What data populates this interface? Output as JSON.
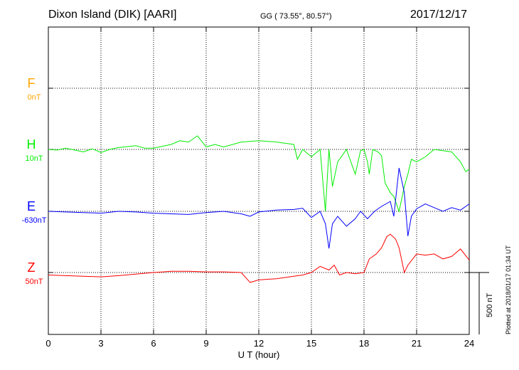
{
  "header": {
    "station": "Dixon Island (DIK)  [AARI]",
    "coords": "GG ( 73.55°,  80.57°)",
    "date": "2017/12/17"
  },
  "plot_stamp": "Plotted at 2018/01/17 01:34 UT",
  "chart_data": {
    "type": "line",
    "xlabel": "U T (hour)",
    "xlim": [
      0,
      24
    ],
    "x_ticks": [
      "0",
      "3",
      "6",
      "9",
      "12",
      "15",
      "18",
      "21",
      "24"
    ],
    "scale_bar": "500 nT",
    "grid": true,
    "series": [
      {
        "name": "F",
        "baseline_label": "0nT",
        "color": "#ffa500",
        "values": []
      },
      {
        "name": "H",
        "baseline_label": "10nT",
        "color": "#00ee00",
        "values": [
          [
            0,
            0
          ],
          [
            0.5,
            -5
          ],
          [
            1,
            10
          ],
          [
            2,
            -20
          ],
          [
            2.5,
            5
          ],
          [
            3,
            -25
          ],
          [
            3.5,
            0
          ],
          [
            4,
            15
          ],
          [
            5,
            30
          ],
          [
            5.5,
            10
          ],
          [
            6,
            10
          ],
          [
            7,
            40
          ],
          [
            7.5,
            70
          ],
          [
            8,
            60
          ],
          [
            8.5,
            110
          ],
          [
            9,
            20
          ],
          [
            9.5,
            40
          ],
          [
            10,
            20
          ],
          [
            11,
            60
          ],
          [
            12,
            70
          ],
          [
            13,
            60
          ],
          [
            14,
            40
          ],
          [
            14.2,
            -80
          ],
          [
            14.5,
            0
          ],
          [
            15,
            -60
          ],
          [
            15.5,
            0
          ],
          [
            15.8,
            -500
          ],
          [
            16,
            0
          ],
          [
            16.2,
            -300
          ],
          [
            16.5,
            -100
          ],
          [
            17,
            0
          ],
          [
            17.5,
            -200
          ],
          [
            17.8,
            -10
          ],
          [
            18,
            0
          ],
          [
            18.2,
            -100
          ],
          [
            18.3,
            -200
          ],
          [
            18.5,
            0
          ],
          [
            18.8,
            -20
          ],
          [
            19,
            -50
          ],
          [
            19.2,
            -270
          ],
          [
            19.5,
            -350
          ],
          [
            19.7,
            -380
          ],
          [
            20,
            -500
          ],
          [
            20.3,
            -300
          ],
          [
            20.5,
            -200
          ],
          [
            20.7,
            -80
          ],
          [
            21,
            -100
          ],
          [
            21.5,
            -60
          ],
          [
            22,
            0
          ],
          [
            23,
            -20
          ],
          [
            23.5,
            -100
          ],
          [
            23.8,
            -180
          ],
          [
            24,
            -160
          ]
        ]
      },
      {
        "name": "E",
        "baseline_label": "-630nT",
        "color": "#0000ff",
        "values": [
          [
            0,
            0
          ],
          [
            1,
            -5
          ],
          [
            2,
            -10
          ],
          [
            3,
            -15
          ],
          [
            4,
            0
          ],
          [
            5,
            -5
          ],
          [
            6,
            -15
          ],
          [
            7,
            -20
          ],
          [
            8,
            -25
          ],
          [
            9,
            -10
          ],
          [
            10,
            0
          ],
          [
            11,
            -20
          ],
          [
            11.5,
            -40
          ],
          [
            12,
            -5
          ],
          [
            13,
            10
          ],
          [
            14,
            15
          ],
          [
            14.5,
            25
          ],
          [
            15,
            -50
          ],
          [
            15.5,
            0
          ],
          [
            15.8,
            -100
          ],
          [
            16,
            -300
          ],
          [
            16.2,
            -100
          ],
          [
            16.5,
            -40
          ],
          [
            17,
            -120
          ],
          [
            17.5,
            -60
          ],
          [
            17.8,
            0
          ],
          [
            18.2,
            -60
          ],
          [
            18.6,
            0
          ],
          [
            19,
            40
          ],
          [
            19.5,
            80
          ],
          [
            19.7,
            -40
          ],
          [
            20,
            350
          ],
          [
            20.3,
            150
          ],
          [
            20.5,
            -200
          ],
          [
            20.7,
            -40
          ],
          [
            21,
            20
          ],
          [
            21.5,
            60
          ],
          [
            22,
            30
          ],
          [
            22.5,
            0
          ],
          [
            23,
            30
          ],
          [
            23.5,
            10
          ],
          [
            24,
            60
          ]
        ]
      },
      {
        "name": "Z",
        "baseline_label": "50nT",
        "color": "#ff0000",
        "values": [
          [
            0,
            -20
          ],
          [
            2,
            -30
          ],
          [
            3,
            -35
          ],
          [
            4,
            -25
          ],
          [
            6,
            0
          ],
          [
            7,
            10
          ],
          [
            8,
            10
          ],
          [
            9,
            5
          ],
          [
            10,
            5
          ],
          [
            11,
            0
          ],
          [
            11.5,
            -80
          ],
          [
            12,
            -60
          ],
          [
            13,
            -50
          ],
          [
            14,
            -30
          ],
          [
            14.5,
            -20
          ],
          [
            15,
            0
          ],
          [
            15.5,
            50
          ],
          [
            16,
            20
          ],
          [
            16.3,
            60
          ],
          [
            16.6,
            -20
          ],
          [
            17,
            0
          ],
          [
            17.5,
            -10
          ],
          [
            18,
            0
          ],
          [
            18.3,
            110
          ],
          [
            18.7,
            150
          ],
          [
            19,
            200
          ],
          [
            19.3,
            290
          ],
          [
            19.5,
            310
          ],
          [
            19.8,
            270
          ],
          [
            20,
            200
          ],
          [
            20.3,
            0
          ],
          [
            20.5,
            60
          ],
          [
            21,
            150
          ],
          [
            21.5,
            140
          ],
          [
            22,
            150
          ],
          [
            22.5,
            110
          ],
          [
            23,
            130
          ],
          [
            23.5,
            190
          ],
          [
            24,
            100
          ]
        ]
      }
    ]
  }
}
